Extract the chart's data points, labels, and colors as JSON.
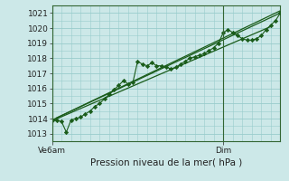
{
  "title": "Pression niveau de la mer( hPa )",
  "ylim": [
    1012.5,
    1021.5
  ],
  "yticks": [
    1013,
    1014,
    1015,
    1016,
    1017,
    1018,
    1019,
    1020,
    1021
  ],
  "xlim": [
    0,
    48
  ],
  "xtick_positions": [
    0,
    36
  ],
  "xtick_labels": [
    "Ve6am",
    "Dim"
  ],
  "bg_color": "#cce8e8",
  "grid_color": "#99cccc",
  "line_color": "#1a5c1a",
  "marker_color": "#1a5c1a",
  "axis_color": "#336633",
  "outer_bg": "#cce8e8",
  "main_series": [
    1013.9,
    1013.9,
    1013.8,
    1013.1,
    1013.9,
    1014.0,
    1014.1,
    1014.3,
    1014.5,
    1014.8,
    1015.0,
    1015.3,
    1015.6,
    1015.9,
    1016.2,
    1016.5,
    1016.3,
    1016.4,
    1017.8,
    1017.6,
    1017.5,
    1017.7,
    1017.5,
    1017.5,
    1017.4,
    1017.3,
    1017.4,
    1017.6,
    1017.8,
    1018.0,
    1018.1,
    1018.2,
    1018.3,
    1018.5,
    1018.7,
    1019.0,
    1019.7,
    1019.9,
    1019.7,
    1019.5,
    1019.3,
    1019.2,
    1019.2,
    1019.3,
    1019.5,
    1019.9,
    1020.2,
    1020.5,
    1021.0
  ],
  "trend1": [
    1013.9,
    1021.0
  ],
  "trend1_x": [
    0,
    48
  ],
  "trend2": [
    1013.85,
    1020.1
  ],
  "trend2_x": [
    0,
    46
  ],
  "trend3": [
    1014.05,
    1021.15
  ],
  "trend3_x": [
    1,
    48
  ]
}
